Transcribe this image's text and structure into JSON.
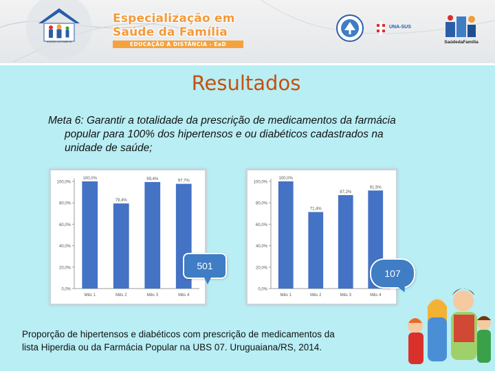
{
  "header": {
    "banner_line1": "Especialização em",
    "banner_line2": "Saúde da Família",
    "banner_line3": "EDUCAÇÃO A DISTÂNCIA - EaD",
    "logo_house_caption": "SAÚDE DA FAMÍLIA",
    "unasus_label": "UNA-SUS",
    "sf_caption": "SaúdedaFamília"
  },
  "slide": {
    "title": "Resultados",
    "goal_label": "Meta 6",
    "goal_line1": ": Garantir a totalidade da prescrição de medicamentos da farmácia",
    "goal_line2": "popular para 100% dos hipertensos e ou diabéticos cadastrados na",
    "goal_line3": "unidade de saúde;",
    "caption_line1": "Proporção de hipertensos e diabéticos com prescrição de medicamentos da",
    "caption_line2": "lista Hiperdia ou da Farmácia Popular na UBS 07. Uruguaiana/RS, 2014."
  },
  "callouts": {
    "left_value": "501",
    "right_value": "107"
  },
  "colors": {
    "bar": "#4472c4",
    "background": "#b8eef4",
    "title": "#c5500f",
    "accent": "#f39a3a"
  },
  "chart_data": [
    {
      "type": "bar",
      "categories": [
        "Mês 1",
        "Mês 2",
        "Mês 3",
        "Mês 4"
      ],
      "values": [
        100.0,
        79.4,
        99.4,
        97.7
      ],
      "value_labels": [
        "100,0%",
        "79,4%",
        "99,4%",
        "97,7%"
      ],
      "y_ticks": [
        "0,0%",
        "20,0%",
        "40,0%",
        "60,0%",
        "80,0%",
        "100,0%"
      ],
      "ylim": [
        0,
        100
      ],
      "grid": false,
      "title": "",
      "xlabel": "",
      "ylabel": ""
    },
    {
      "type": "bar",
      "categories": [
        "Mês 1",
        "Mês 2",
        "Mês 3",
        "Mês 4"
      ],
      "values": [
        100.0,
        71.4,
        87.2,
        91.5
      ],
      "value_labels": [
        "100,0%",
        "71,4%",
        "87,2%",
        "91,5%"
      ],
      "y_ticks": [
        "0,0%",
        "20,0%",
        "40,0%",
        "60,0%",
        "80,0%",
        "100,0%"
      ],
      "ylim": [
        0,
        100
      ],
      "grid": false,
      "title": "",
      "xlabel": "",
      "ylabel": ""
    }
  ]
}
